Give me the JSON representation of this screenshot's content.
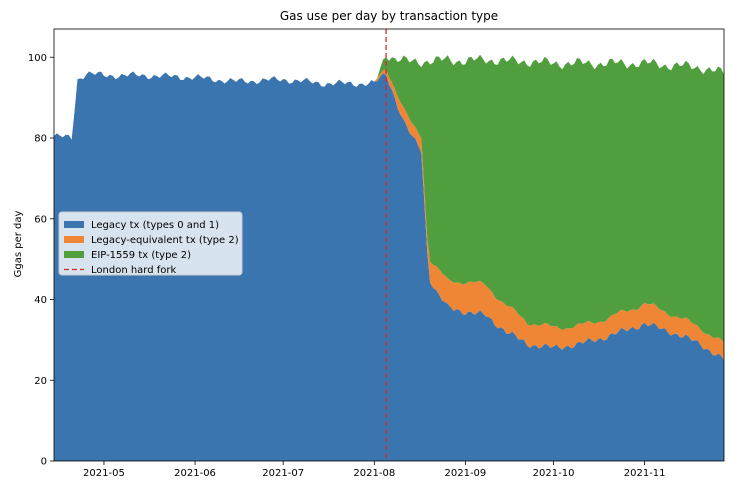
{
  "chart_data": {
    "type": "area",
    "stacked": true,
    "title": "Gas use per day by transaction type",
    "xlabel": "",
    "ylabel": "Ggas per day",
    "xlim": [
      "2021-04-14",
      "2021-11-28"
    ],
    "ylim": [
      0,
      107
    ],
    "x_ticks": [
      "2021-05-01",
      "2021-06-01",
      "2021-07-01",
      "2021-08-01",
      "2021-09-01",
      "2021-10-01",
      "2021-11-01"
    ],
    "x_tick_labels": [
      "2021-05",
      "2021-06",
      "2021-07",
      "2021-08",
      "2021-09",
      "2021-10",
      "2021-11"
    ],
    "y_ticks": [
      0,
      20,
      40,
      60,
      80,
      100
    ],
    "y_tick_labels": [
      "0",
      "20",
      "40",
      "60",
      "80",
      "100"
    ],
    "grid": false,
    "legend_position": "center-left",
    "x": [
      "2021-04-14",
      "2021-04-20",
      "2021-04-22",
      "2021-04-25",
      "2021-05-01",
      "2021-05-15",
      "2021-06-01",
      "2021-06-15",
      "2021-07-01",
      "2021-07-15",
      "2021-08-01",
      "2021-08-05",
      "2021-08-08",
      "2021-08-11",
      "2021-08-14",
      "2021-08-17",
      "2021-08-19",
      "2021-08-20",
      "2021-08-22",
      "2021-08-26",
      "2021-09-01",
      "2021-09-08",
      "2021-09-15",
      "2021-09-22",
      "2021-10-01",
      "2021-10-10",
      "2021-10-20",
      "2021-11-01",
      "2021-11-10",
      "2021-11-20",
      "2021-11-28"
    ],
    "series": [
      {
        "name": "Legacy tx (types 0 and 1)",
        "color": "#3b75af",
        "values": [
          80.5,
          80.0,
          94.5,
          96.0,
          95.5,
          95.5,
          95.0,
          94.0,
          94.5,
          93.5,
          93.5,
          96.0,
          90.0,
          84.0,
          80.0,
          77.0,
          52.0,
          45.0,
          42.0,
          38.0,
          37.0,
          36.0,
          32.0,
          29.0,
          28.0,
          29.0,
          31.0,
          34.0,
          32.0,
          29.0,
          25.0
        ]
      },
      {
        "name": "Legacy-equivalent tx (type 2)",
        "color": "#ef8636",
        "values": [
          0,
          0,
          0,
          0,
          0,
          0,
          0,
          0,
          0,
          0,
          0,
          1.5,
          2.5,
          3.0,
          3.0,
          3.5,
          4.0,
          5.0,
          6.0,
          6.5,
          7.5,
          7.5,
          6.5,
          5.5,
          5.0,
          4.5,
          4.5,
          5.0,
          4.5,
          4.0,
          4.0
        ]
      },
      {
        "name": "EIP-1559 tx (type 2)",
        "color": "#519e3e",
        "values": [
          0,
          0,
          0,
          0,
          0,
          0,
          0,
          0,
          0,
          0,
          0,
          3.5,
          7.0,
          12.0,
          16.0,
          18.5,
          43.0,
          49.0,
          51.0,
          55.0,
          54.5,
          56.0,
          60.5,
          64.5,
          65.5,
          65.0,
          63.0,
          59.5,
          61.5,
          64.5,
          67.0
        ]
      }
    ],
    "events": [
      {
        "name": "London hard fork",
        "x": "2021-08-05",
        "color": "#d62728",
        "style": "dashed"
      }
    ]
  }
}
